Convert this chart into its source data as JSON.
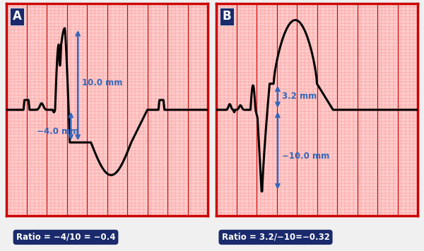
{
  "background_color": "#f0f0f0",
  "grid_bg_color": "#ffcccc",
  "grid_major_color": "#cc0000",
  "grid_minor_color": "#ff8888",
  "ecg_color": "#000000",
  "ecg_linewidth": 2.2,
  "label_A": "A",
  "label_B": "B",
  "ratio_A_text": "Ratio = −4/10 = −0.4",
  "ratio_B_text": "Ratio = 3.2/−10=−0.32",
  "ratio_box_color": "#1a2a6c",
  "ratio_text_color": "#ffffff",
  "arrow_color": "#3366bb",
  "text_10mm": "10.0 mm",
  "text_4mm": "−4.0 mm",
  "text_32mm": "3.2 mm",
  "text_10mm_B": "−10.0 mm",
  "ylim": [
    -6.5,
    6.5
  ],
  "xlim": [
    0,
    10
  ]
}
